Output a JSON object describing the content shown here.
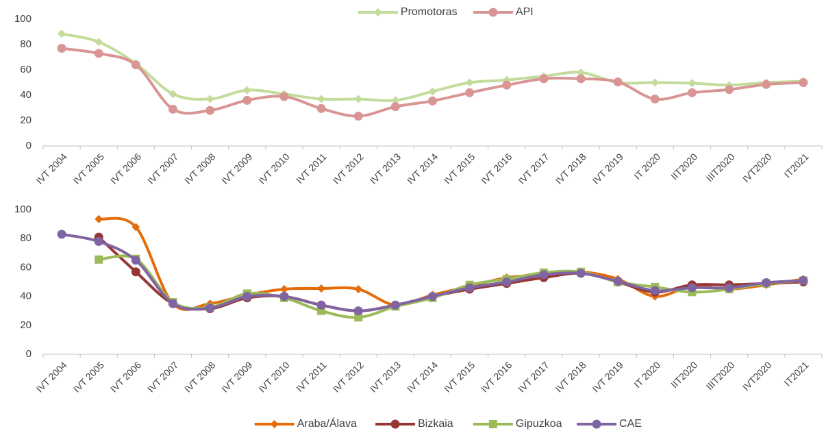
{
  "chart_data": [
    {
      "type": "line",
      "smooth": true,
      "legend": "top",
      "categories": [
        "IVT 2004",
        "IVT 2005",
        "IVT 2006",
        "IVT 2007",
        "IVT 2008",
        "IVT 2009",
        "IVT 2010",
        "IVT 2011",
        "IVT 2012",
        "IVT 2013",
        "IVT 2014",
        "IVT 2015",
        "IVT 2016",
        "IVT 2017",
        "IVT 2018",
        "IVT 2019",
        "IT 2020",
        "IIT2020",
        "IIIT2020",
        "IVT2020",
        "IT2021"
      ],
      "ylim": [
        0,
        100
      ],
      "yticks": [
        0,
        20,
        40,
        60,
        80,
        100
      ],
      "series": [
        {
          "name": "Promotoras",
          "color": "#c3dc9b",
          "marker": "diamond",
          "values": [
            88.5,
            82,
            65,
            41,
            37,
            44,
            41,
            37,
            37,
            36,
            43,
            50,
            52,
            55,
            58,
            50,
            50,
            49.5,
            48,
            50,
            51
          ]
        },
        {
          "name": "API",
          "color": "#d99594",
          "marker": "circle",
          "values": [
            77,
            73,
            64,
            29,
            28,
            36,
            39,
            29.5,
            23.5,
            31,
            35.5,
            42,
            48,
            53,
            53,
            50.5,
            37,
            42,
            44.5,
            48.5,
            50
          ]
        }
      ]
    },
    {
      "type": "line",
      "smooth": true,
      "legend": "bottom",
      "categories": [
        "IVT 2004",
        "IVT 2005",
        "IVT 2006",
        "IVT 2007",
        "IVT 2008",
        "IVT 2009",
        "IVT 2010",
        "IVT 2011",
        "IVT 2012",
        "IVT 2013",
        "IVT 2014",
        "IVT 2015",
        "IVT 2016",
        "IVT 2017",
        "IVT 2018",
        "IVT 2019",
        "IT 2020",
        "IIT2020",
        "IIIT2020",
        "IVT2020",
        "IT2021"
      ],
      "ylim": [
        0,
        100
      ],
      "yticks": [
        0,
        20,
        40,
        60,
        80,
        100
      ],
      "series": [
        {
          "name": "Araba/Álava",
          "color": "#e46c0a",
          "marker": "diamond",
          "values": [
            null,
            93.5,
            88,
            35,
            35,
            41,
            45,
            45.5,
            45,
            34,
            41,
            47,
            53,
            55,
            57,
            52,
            40,
            47,
            45,
            48,
            52
          ]
        },
        {
          "name": "Bizkaia",
          "color": "#953735",
          "marker": "circle",
          "values": [
            null,
            81,
            57,
            35,
            31.5,
            39,
            40,
            34,
            30,
            34,
            40,
            45,
            49,
            53,
            56,
            50,
            43,
            48,
            48,
            49,
            50
          ]
        },
        {
          "name": "Gipuzkoa",
          "color": "#9bbb59",
          "marker": "square",
          "values": [
            null,
            65.5,
            66,
            36,
            32.5,
            42,
            39,
            30,
            25.5,
            33,
            39,
            48,
            52,
            56.5,
            57,
            50,
            46.5,
            43,
            45,
            49,
            51
          ]
        },
        {
          "name": "CAE",
          "color": "#8064a2",
          "marker": "circle",
          "values": [
            83,
            78,
            65,
            35,
            32,
            40,
            40,
            34,
            30,
            34,
            40,
            46,
            50,
            55,
            56,
            50.5,
            44,
            46,
            46,
            49.5,
            51
          ]
        }
      ]
    }
  ]
}
